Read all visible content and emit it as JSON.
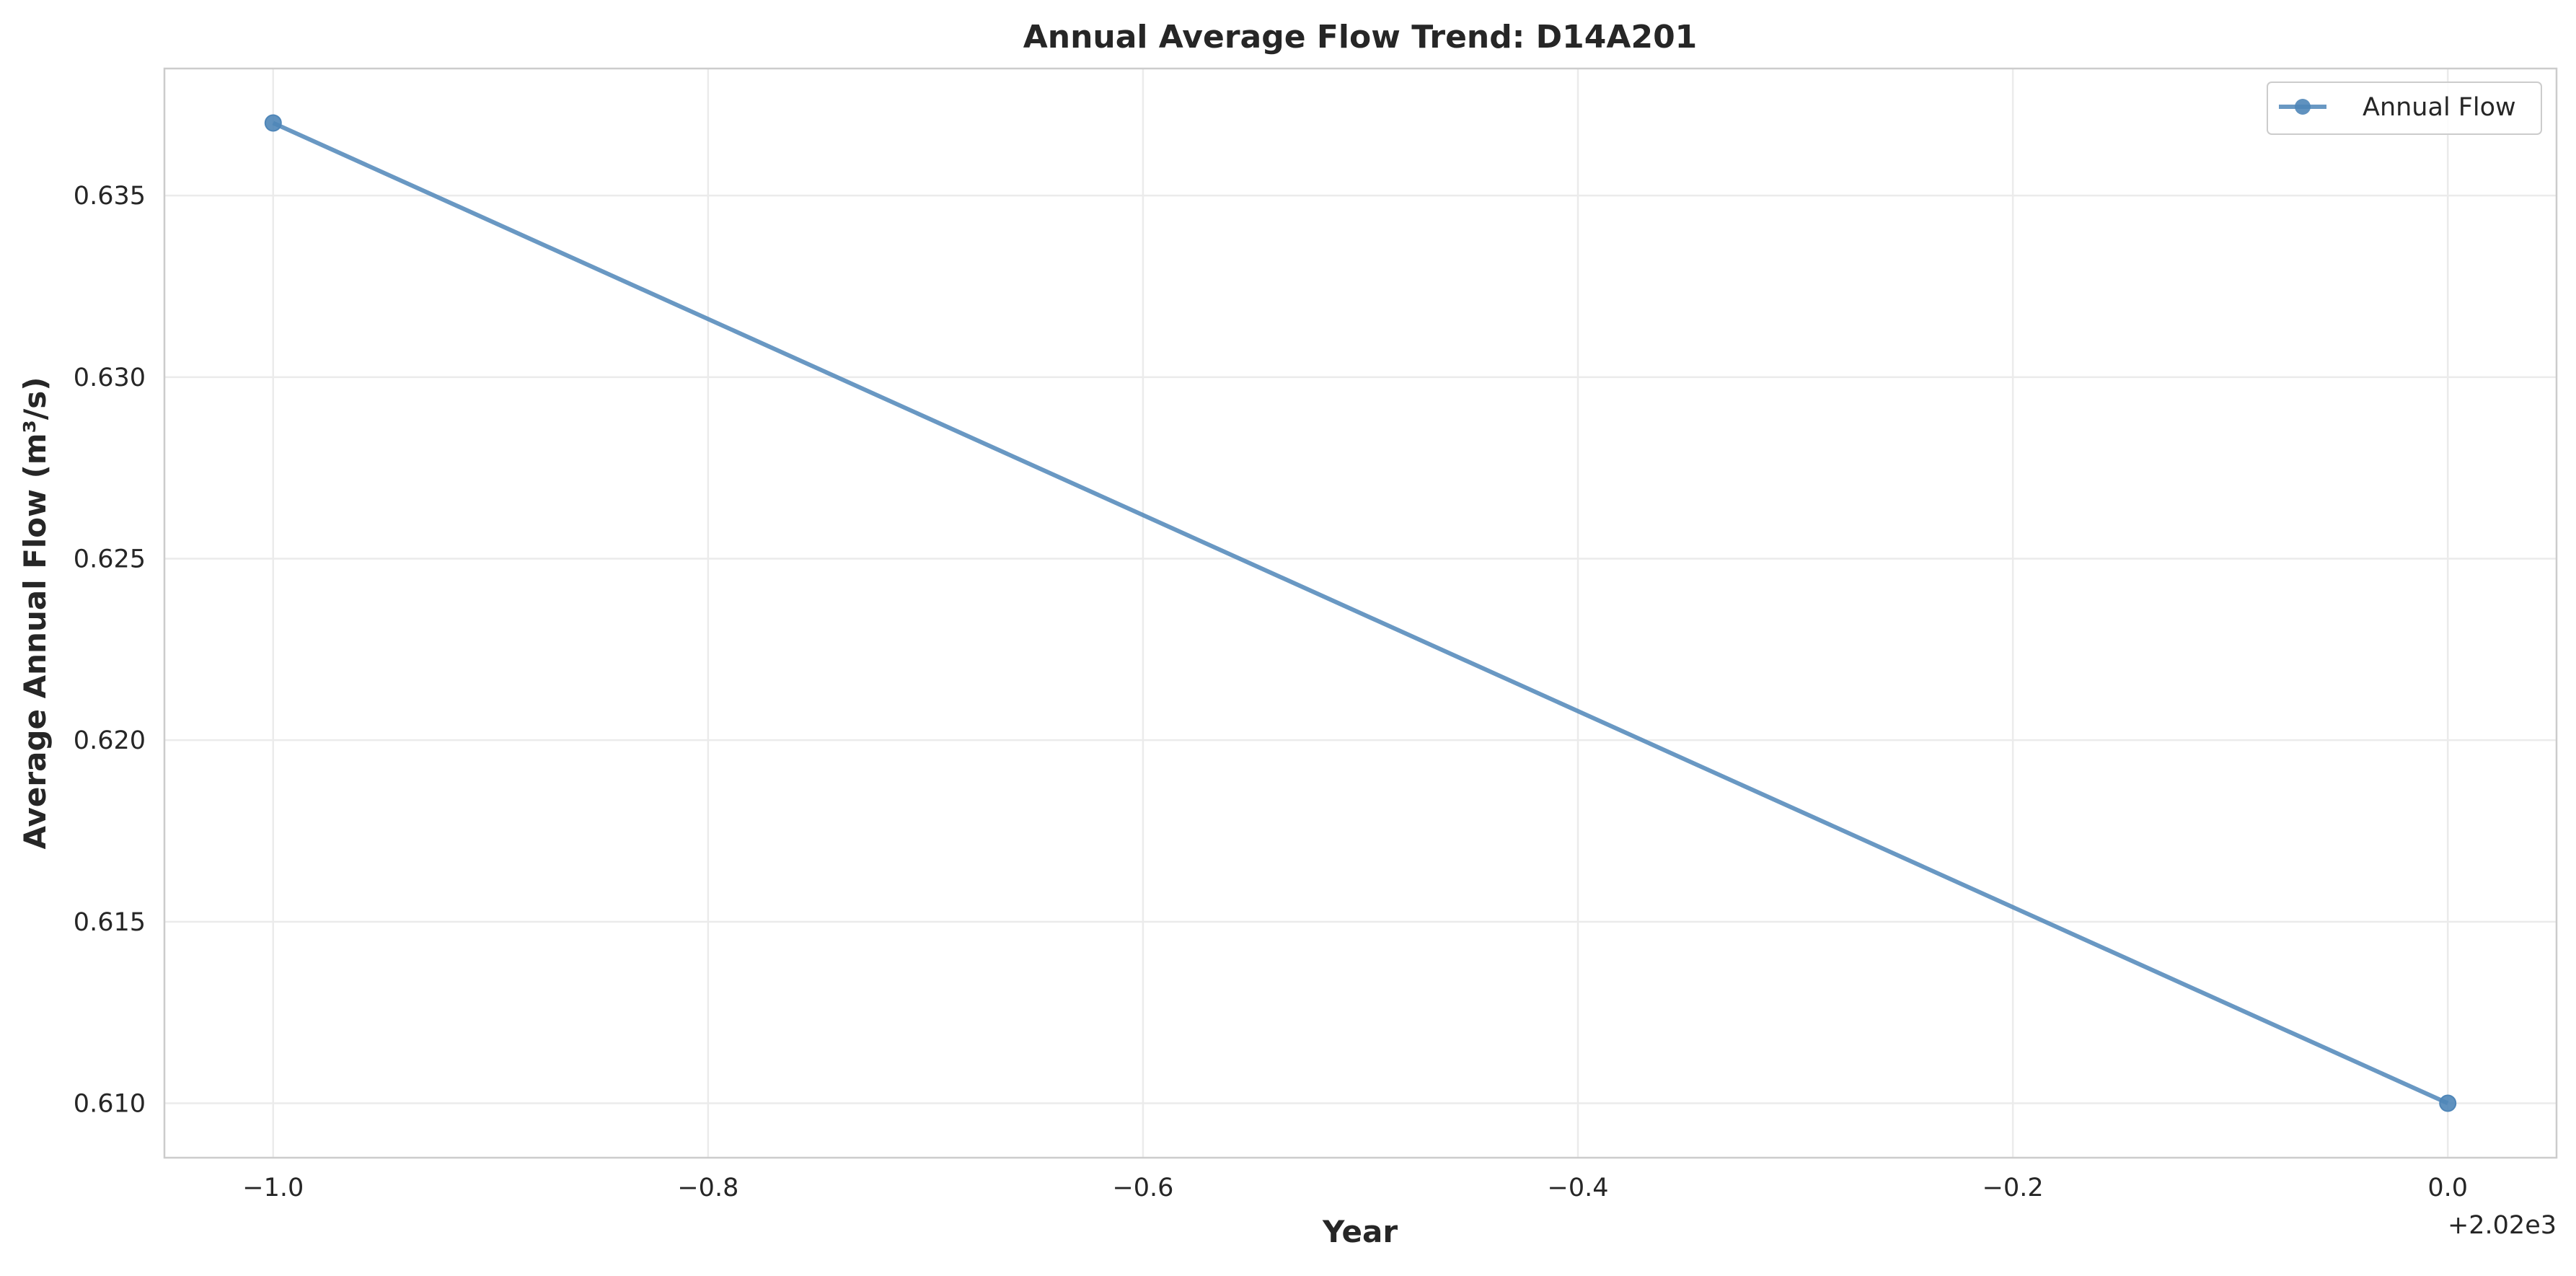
{
  "chart_data": {
    "type": "line",
    "title": "Annual Average Flow Trend: D14A201",
    "xlabel": "Year",
    "ylabel": "Average Annual Flow (m³/s)",
    "x_offset_label": "+2.02e3",
    "xlim": [
      -1.05,
      0.05
    ],
    "ylim": [
      0.6085,
      0.6385
    ],
    "x_ticks": [
      -1.0,
      -0.8,
      -0.6,
      -0.4,
      -0.2,
      0.0
    ],
    "x_tick_labels": [
      "−1.0",
      "−0.8",
      "−0.6",
      "−0.4",
      "−0.2",
      "0.0"
    ],
    "y_ticks": [
      0.61,
      0.615,
      0.62,
      0.625,
      0.63,
      0.635
    ],
    "y_tick_labels": [
      "0.610",
      "0.615",
      "0.620",
      "0.625",
      "0.630",
      "0.635"
    ],
    "grid": true,
    "legend_position": "top-right",
    "series": [
      {
        "name": "Annual Flow",
        "color": "#4f86b8",
        "marker": "circle",
        "x": [
          -1.0,
          0.0
        ],
        "y": [
          0.637,
          0.61
        ]
      }
    ]
  }
}
